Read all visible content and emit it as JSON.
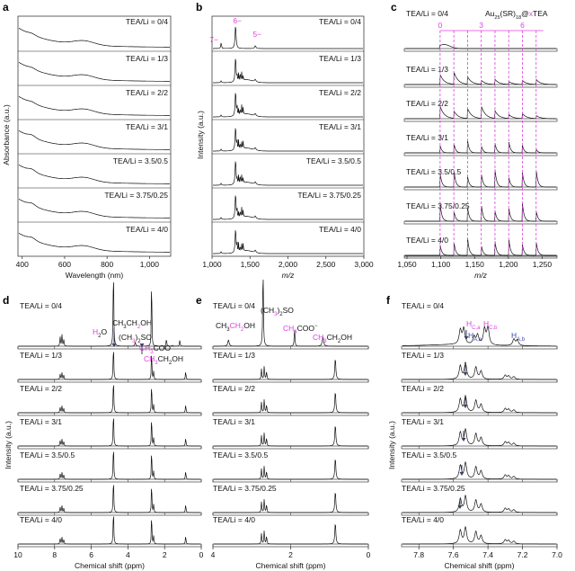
{
  "colors": {
    "magenta": "#e040e0",
    "blue": "#3a4ab0",
    "line": "#111111"
  },
  "strip_labels": [
    "TEA/Li = 0/4",
    "TEA/Li = 1/3",
    "TEA/Li = 2/2",
    "TEA/Li = 3/1",
    "TEA/Li = 3.5/0.5",
    "TEA/Li = 3.75/0.25",
    "TEA/Li = 4/0"
  ],
  "chart_data": [
    {
      "panel": "a",
      "type": "line",
      "xlabel": "Wavelength (nm)",
      "ylabel": "Absorbance (a.u.)",
      "xlim": [
        380,
        1100
      ],
      "xticks": [
        "400",
        "600",
        "800",
        "1,000"
      ],
      "xtick_values": [
        400,
        600,
        800,
        1000
      ]
    },
    {
      "panel": "b",
      "type": "line",
      "xlabel": "m/z",
      "ylabel": "Intensity (a.u.)",
      "xlim": [
        1000,
        3000
      ],
      "xticks": [
        "1,000",
        "1,500",
        "2,000",
        "2,500",
        "3,000"
      ],
      "xtick_values": [
        1000,
        1500,
        2000,
        2500,
        3000
      ],
      "peak_labels": [
        {
          "text": "7−",
          "x": 1120
        },
        {
          "text": "6−",
          "x": 1310
        },
        {
          "text": "5−",
          "x": 1570
        }
      ]
    },
    {
      "panel": "c",
      "type": "line",
      "title": "Au25(SR)18@xTEA",
      "title_parts": [
        "Au",
        "25",
        "(SR)",
        "18",
        "@",
        "x",
        "TEA"
      ],
      "xlim": [
        1046,
        1272
      ],
      "xticks": [
        "1,050",
        "1,100",
        "1,150",
        "1,200",
        "1,250"
      ],
      "xtick_values": [
        1050,
        1100,
        1150,
        1200,
        1250
      ],
      "adduct_lines": [
        1099,
        1119.3,
        1139.6,
        1159.9,
        1180.2,
        1200.5,
        1220.8,
        1241.1
      ],
      "adduct_labels": [
        {
          "text": "0",
          "x": 1099
        },
        {
          "text": "3",
          "x": 1159.9
        },
        {
          "text": "6",
          "x": 1220.8
        }
      ]
    },
    {
      "panel": "d",
      "type": "line",
      "xlabel": "Chemical shift (ppm)",
      "ylabel": "Intensity (a.u.)",
      "xlim": [
        10,
        0
      ],
      "xticks": [
        "10",
        "8",
        "6",
        "4",
        "2",
        "0"
      ],
      "xtick_values": [
        10,
        8,
        6,
        4,
        2,
        0
      ]
    },
    {
      "panel": "e",
      "type": "line",
      "xlabel": "Chemical shift (ppm)",
      "xlim": [
        4,
        0
      ],
      "xticks": [
        "4",
        "2",
        "0"
      ],
      "xtick_values": [
        4,
        2,
        0
      ]
    },
    {
      "panel": "f",
      "type": "line",
      "xlabel": "Chemical shift (ppm)",
      "ylabel": "Intensity (a.u.)",
      "xlim": [
        7.9,
        7.0
      ],
      "xticks": [
        "7.8",
        "7.6",
        "7.4",
        "7.2",
        "7.0"
      ],
      "xtick_values": [
        7.8,
        7.6,
        7.4,
        7.2,
        7.0
      ]
    }
  ],
  "panel_letters": [
    "a",
    "b",
    "c",
    "d",
    "e",
    "f"
  ],
  "annotations_d": [
    {
      "parts": [
        [
          "CH",
          ""
        ],
        [
          "3",
          "sub"
        ],
        [
          "CH",
          ""
        ],
        [
          "2",
          "subm"
        ],
        [
          "OH",
          ""
        ]
      ]
    },
    {
      "parts": [
        [
          "H",
          "m"
        ],
        [
          "2",
          "sub"
        ],
        [
          "O",
          ""
        ]
      ]
    },
    {
      "parts": [
        [
          "(CH",
          ""
        ],
        [
          "3",
          "subm"
        ],
        [
          ")",
          ""
        ],
        [
          "2",
          "sub"
        ],
        [
          "SO",
          ""
        ]
      ]
    },
    {
      "parts": [
        [
          "C",
          "m"
        ],
        [
          "H",
          "m"
        ],
        [
          "3",
          "subm"
        ],
        [
          "COO",
          ""
        ],
        [
          "−",
          "sup"
        ]
      ]
    },
    {
      "parts": [
        [
          "CH",
          "m"
        ],
        [
          "3",
          "subm"
        ],
        [
          "CH",
          ""
        ],
        [
          "2",
          "sub"
        ],
        [
          "OH",
          ""
        ]
      ]
    }
  ],
  "annotations_e": [
    {
      "parts": [
        [
          "CH",
          ""
        ],
        [
          "3",
          "sub"
        ],
        [
          "CH",
          "m"
        ],
        [
          "2",
          "subm"
        ],
        [
          "OH",
          ""
        ]
      ]
    },
    {
      "parts": [
        [
          "(CH",
          ""
        ],
        [
          "3",
          "subm"
        ],
        [
          ")",
          ""
        ],
        [
          "2",
          "sub"
        ],
        [
          "SO",
          ""
        ]
      ]
    },
    {
      "parts": [
        [
          "CH",
          "m"
        ],
        [
          "3",
          "subm"
        ],
        [
          "COO",
          ""
        ],
        [
          "−",
          "sup"
        ]
      ]
    },
    {
      "parts": [
        [
          "CH",
          "m"
        ],
        [
          "3",
          "subm"
        ],
        [
          "CH",
          ""
        ],
        [
          "2",
          "sub"
        ],
        [
          "OH",
          ""
        ]
      ]
    }
  ],
  "annotations_f": [
    {
      "parts": [
        [
          "H",
          "m"
        ],
        [
          "C,a",
          "subm"
        ]
      ]
    },
    {
      "parts": [
        [
          "H",
          "b"
        ],
        [
          "A,a",
          "subb"
        ]
      ]
    },
    {
      "parts": [
        [
          "H",
          "m"
        ],
        [
          "C,b",
          "subm"
        ]
      ]
    },
    {
      "parts": [
        [
          "H",
          "b"
        ],
        [
          "A,b",
          "subb"
        ]
      ]
    }
  ]
}
